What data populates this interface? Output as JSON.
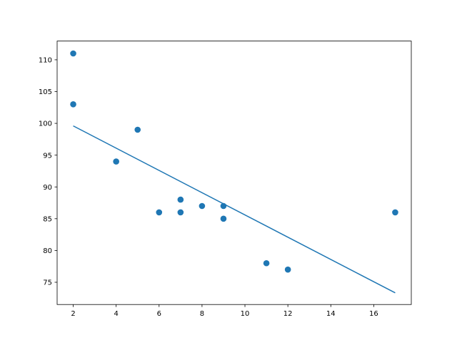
{
  "chart_data": {
    "type": "scatter",
    "title": "",
    "xlabel": "",
    "ylabel": "",
    "xlim": [
      1.25,
      17.75
    ],
    "ylim": [
      71.5,
      112.95
    ],
    "xticks": [
      2,
      4,
      6,
      8,
      10,
      12,
      14,
      16
    ],
    "yticks": [
      75,
      80,
      85,
      90,
      95,
      100,
      105,
      110
    ],
    "grid": false,
    "color": "#1f77b4",
    "points": {
      "x": [
        5,
        7,
        8,
        7,
        2,
        17,
        2,
        9,
        4,
        11,
        12,
        9,
        6
      ],
      "y": [
        99,
        86,
        87,
        88,
        111,
        86,
        103,
        87,
        94,
        78,
        77,
        85,
        86
      ]
    },
    "fit_line": {
      "type": "line",
      "slope": -1.7513,
      "intercept": 103.106,
      "x_range": [
        2,
        17
      ]
    }
  }
}
